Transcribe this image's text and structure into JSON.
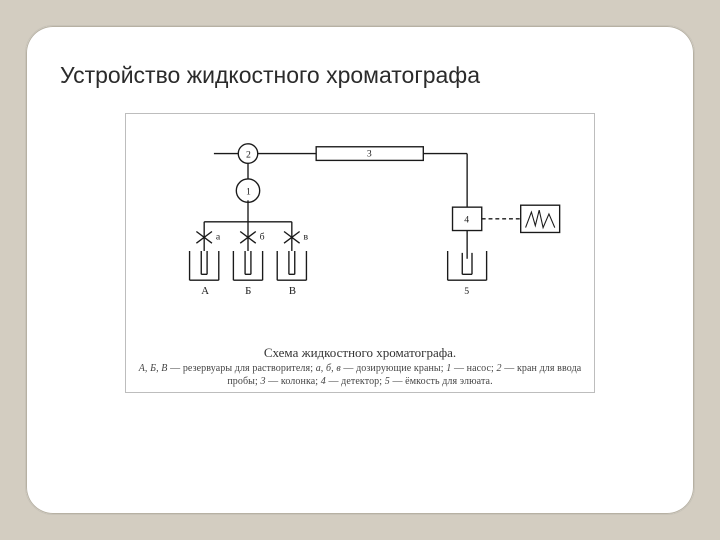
{
  "title": "Устройство жидкостного хроматографа",
  "figure": {
    "caption": "Схема жидкостного хроматографа.",
    "legend_html": "<i>А, Б, В</i> — резервуары для растворителя; <i>а, б, в</i> — дозирующие краны; <i>1</i> — насос; <i>2</i> — кран для ввода пробы; <i>3</i> — колонка; <i>4</i> — детектор; <i>5</i> — ёмкость для элюата.",
    "stroke": "#1a1a1a",
    "stroke_width": 1.4,
    "bg": "#ffffff",
    "labels": {
      "A": "А",
      "B": "Б",
      "V": "В",
      "a": "а",
      "b": "б",
      "v": "в",
      "n1": "1",
      "n2": "2",
      "n3": "3",
      "n4": "4",
      "n5": "5"
    }
  },
  "colors": {
    "page_bg": "#d3cdc1",
    "card_bg": "#ffffff",
    "card_border": "#c8c3b8",
    "figure_border": "#bdbdbd",
    "text": "#2b2b2b"
  }
}
